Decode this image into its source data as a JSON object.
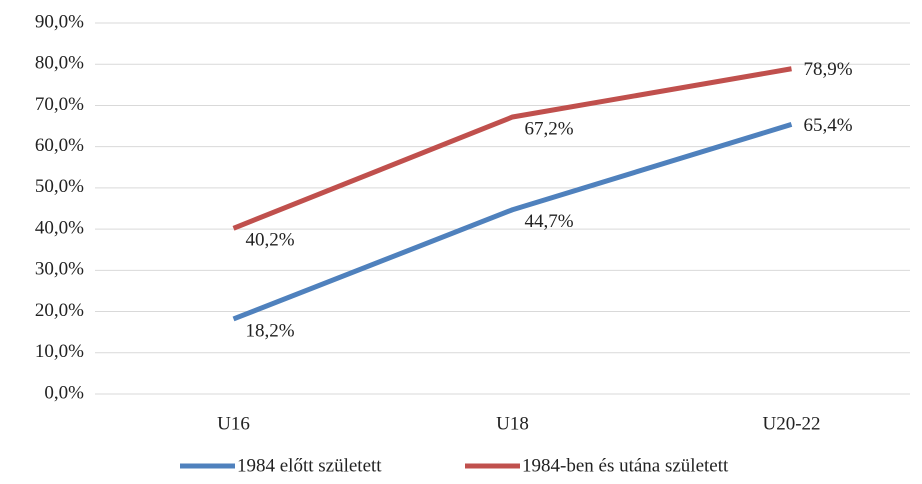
{
  "chart_data": {
    "type": "line",
    "categories": [
      "U16",
      "U18",
      "U20-22"
    ],
    "series": [
      {
        "name": "1984 előtt született",
        "color": "#4f81bd",
        "values": [
          18.2,
          44.7,
          65.4
        ],
        "value_labels": [
          "18,2%",
          "44,7%",
          "65,4%"
        ]
      },
      {
        "name": "1984-ben és utána született",
        "color": "#c0504d",
        "values": [
          40.2,
          67.2,
          78.9
        ],
        "value_labels": [
          "40,2%",
          "67,2%",
          "78,9%"
        ]
      }
    ],
    "ylim": [
      0,
      90
    ],
    "yticks": [
      {
        "value": 0,
        "label": "0,0%"
      },
      {
        "value": 10,
        "label": "10,0%"
      },
      {
        "value": 20,
        "label": "20,0%"
      },
      {
        "value": 30,
        "label": "30,0%"
      },
      {
        "value": 40,
        "label": "40,0%"
      },
      {
        "value": 50,
        "label": "50,0%"
      },
      {
        "value": 60,
        "label": "60,0%"
      },
      {
        "value": 70,
        "label": "70,0%"
      },
      {
        "value": 80,
        "label": "80,0%"
      },
      {
        "value": 90,
        "label": "90,0%"
      }
    ],
    "grid": true,
    "legend": "bottom"
  }
}
